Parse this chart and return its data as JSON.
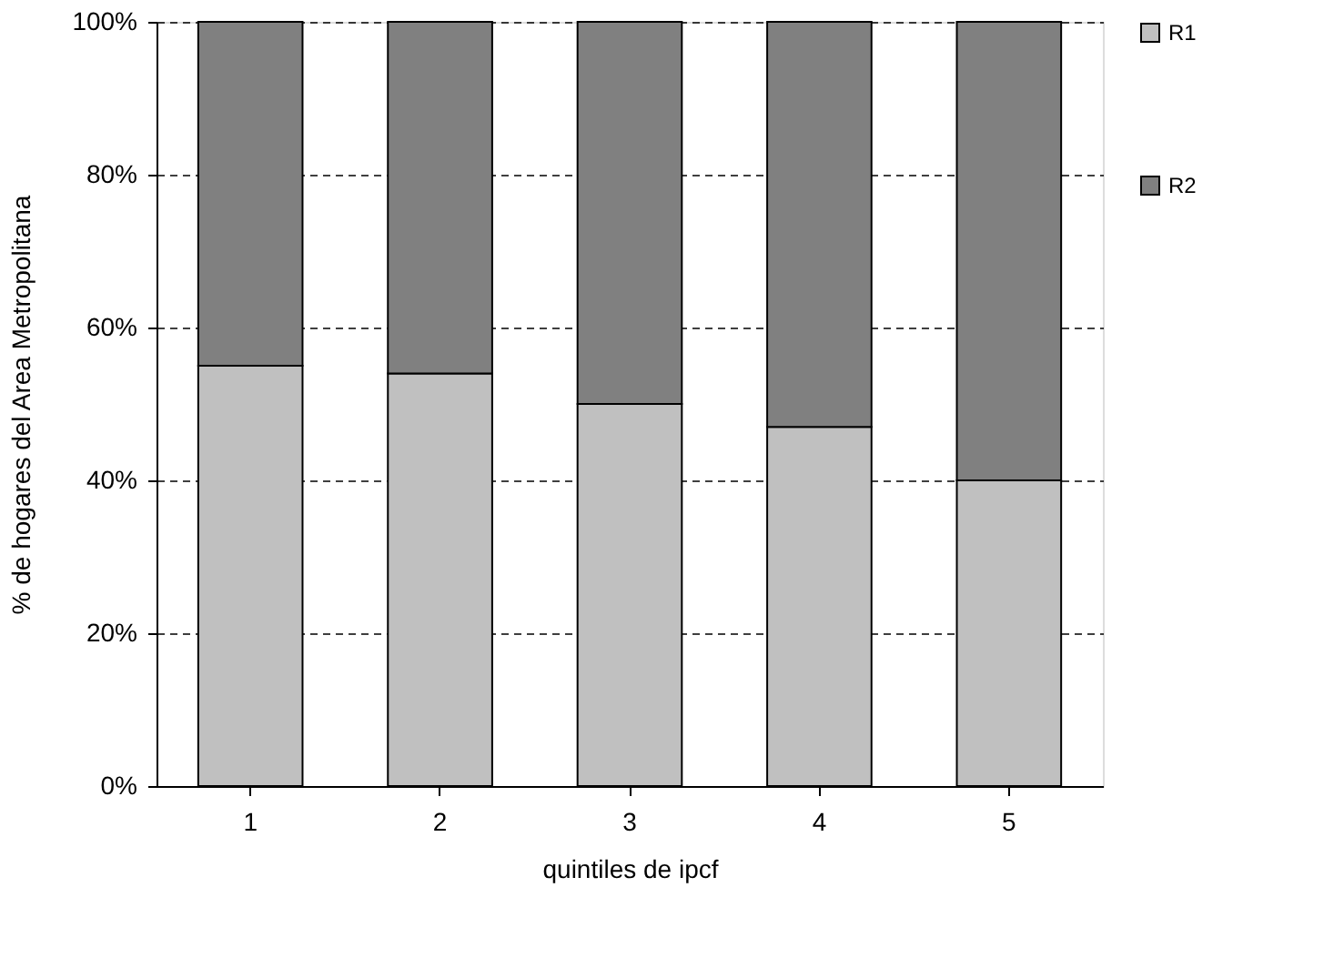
{
  "chart_data": {
    "type": "bar",
    "stacked": true,
    "xlabel": "quintiles de ipcf",
    "ylabel": "% de hogares del Area Metropolitana",
    "categories": [
      "1",
      "2",
      "3",
      "4",
      "5"
    ],
    "series": [
      {
        "name": "R1",
        "color": "#c0c0c0",
        "values": [
          55,
          54,
          50,
          47,
          40
        ]
      },
      {
        "name": "R2",
        "color": "#808080",
        "values": [
          45,
          46,
          50,
          53,
          60
        ]
      }
    ],
    "ylim": [
      0,
      100
    ],
    "yticks": [
      {
        "value": 0,
        "label": "0%"
      },
      {
        "value": 20,
        "label": "20%"
      },
      {
        "value": 40,
        "label": "40%"
      },
      {
        "value": 60,
        "label": "60%"
      },
      {
        "value": 80,
        "label": "80%"
      },
      {
        "value": 100,
        "label": "100%"
      }
    ],
    "grid": "y",
    "legend": "right"
  }
}
